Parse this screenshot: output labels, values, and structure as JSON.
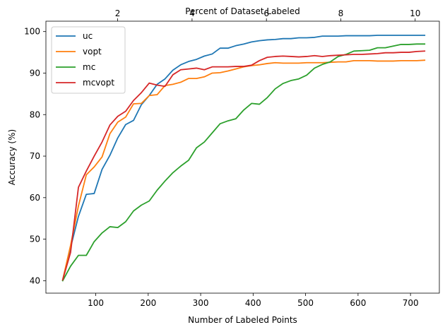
{
  "chart_data": {
    "type": "line",
    "xlabel": "Number of Labeled Points",
    "top_xlabel": "Percent of Dataset Labeled",
    "ylabel": "Accuracy (%)",
    "xlim": [
      5,
      755
    ],
    "ylim": [
      37,
      102.5
    ],
    "top_xlim": [
      0.07,
      10.65
    ],
    "x_ticks": [
      100,
      200,
      300,
      400,
      500,
      600,
      700
    ],
    "y_ticks": [
      40,
      50,
      60,
      70,
      80,
      90,
      100
    ],
    "top_x_ticks": [
      2,
      4,
      6,
      8,
      10
    ],
    "grid": false,
    "legend_position": "upper-left",
    "series": [
      {
        "name": "uc",
        "color": "#1f77b4",
        "x": [
          37,
          52,
          67,
          82,
          97,
          112,
          127,
          142,
          157,
          172,
          187,
          202,
          217,
          232,
          247,
          262,
          277,
          292,
          307,
          322,
          337,
          352,
          367,
          382,
          397,
          412,
          427,
          442,
          457,
          472,
          487,
          502,
          517,
          532,
          547,
          562,
          577,
          592,
          607,
          622,
          637,
          652,
          667,
          682,
          697,
          712,
          727
        ],
        "y": [
          40.2,
          48.0,
          55.5,
          60.8,
          61.0,
          66.8,
          70.2,
          74.4,
          77.6,
          78.6,
          82.4,
          84.6,
          87.3,
          88.6,
          90.7,
          92.0,
          92.8,
          93.3,
          94.1,
          94.6,
          96.0,
          96.0,
          96.6,
          97.0,
          97.5,
          97.8,
          98.0,
          98.1,
          98.3,
          98.3,
          98.5,
          98.5,
          98.6,
          98.9,
          98.9,
          98.9,
          99.0,
          99.0,
          99.0,
          99.0,
          99.1,
          99.1,
          99.1,
          99.1,
          99.1,
          99.1,
          99.1
        ]
      },
      {
        "name": "vopt",
        "color": "#ff7f0e",
        "x": [
          37,
          52,
          67,
          82,
          97,
          112,
          127,
          142,
          157,
          172,
          187,
          202,
          217,
          232,
          247,
          262,
          277,
          292,
          307,
          322,
          337,
          352,
          367,
          382,
          397,
          412,
          427,
          442,
          457,
          472,
          487,
          502,
          517,
          532,
          547,
          562,
          577,
          592,
          607,
          622,
          637,
          652,
          667,
          682,
          697,
          712,
          727
        ],
        "y": [
          40.2,
          48.5,
          58.0,
          65.5,
          67.4,
          69.8,
          75.4,
          78.2,
          79.4,
          82.6,
          82.7,
          84.6,
          84.8,
          87.0,
          87.3,
          87.8,
          88.7,
          88.7,
          89.1,
          90.0,
          90.1,
          90.5,
          91.0,
          91.5,
          91.8,
          92.0,
          92.3,
          92.5,
          92.4,
          92.4,
          92.4,
          92.5,
          92.5,
          92.5,
          92.6,
          92.7,
          92.7,
          93.0,
          93.0,
          93.0,
          92.9,
          92.9,
          92.9,
          93.0,
          93.0,
          93.0,
          93.1
        ]
      },
      {
        "name": "mc",
        "color": "#2ca02c",
        "x": [
          37,
          52,
          67,
          82,
          97,
          112,
          127,
          142,
          157,
          172,
          187,
          202,
          217,
          232,
          247,
          262,
          277,
          292,
          307,
          322,
          337,
          352,
          367,
          382,
          397,
          412,
          427,
          442,
          457,
          472,
          487,
          502,
          517,
          532,
          547,
          562,
          577,
          592,
          607,
          622,
          637,
          652,
          667,
          682,
          697,
          712,
          727
        ],
        "y": [
          40.0,
          43.5,
          46.1,
          46.1,
          49.4,
          51.5,
          53.0,
          52.8,
          54.2,
          56.8,
          58.2,
          59.2,
          61.8,
          64.0,
          66.0,
          67.6,
          69.0,
          72.0,
          73.4,
          75.6,
          77.8,
          78.5,
          79.0,
          81.1,
          82.7,
          82.5,
          84.1,
          86.2,
          87.5,
          88.2,
          88.6,
          89.5,
          91.2,
          92.1,
          92.7,
          94.0,
          94.5,
          95.3,
          95.4,
          95.5,
          96.1,
          96.1,
          96.5,
          96.9,
          96.9,
          97.0,
          97.0
        ]
      },
      {
        "name": "mcvopt",
        "color": "#d62728",
        "x": [
          37,
          52,
          67,
          82,
          97,
          112,
          127,
          142,
          157,
          172,
          187,
          202,
          217,
          232,
          247,
          262,
          277,
          292,
          307,
          322,
          337,
          352,
          367,
          382,
          397,
          412,
          427,
          442,
          457,
          472,
          487,
          502,
          517,
          532,
          547,
          562,
          577,
          592,
          607,
          622,
          637,
          652,
          667,
          682,
          697,
          712,
          727
        ],
        "y": [
          40.2,
          46.8,
          62.5,
          66.4,
          70.0,
          73.4,
          77.5,
          79.6,
          80.8,
          83.4,
          85.3,
          87.6,
          87.1,
          86.8,
          89.6,
          90.8,
          91.0,
          91.2,
          90.8,
          91.5,
          91.5,
          91.5,
          91.6,
          91.6,
          91.9,
          93.0,
          93.8,
          94.0,
          94.1,
          94.0,
          93.9,
          94.0,
          94.2,
          94.0,
          94.2,
          94.3,
          94.4,
          94.5,
          94.5,
          94.6,
          94.7,
          94.9,
          94.9,
          95.0,
          95.0,
          95.2,
          95.3
        ]
      }
    ]
  }
}
